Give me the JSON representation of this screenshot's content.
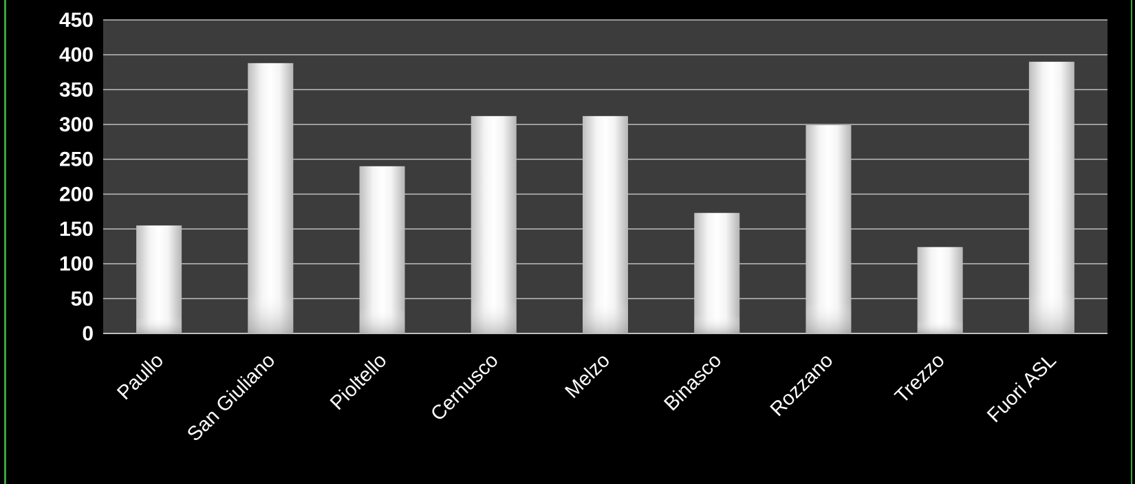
{
  "chart_data": {
    "type": "bar",
    "title": "",
    "xlabel": "",
    "ylabel": "",
    "categories": [
      "Paullo",
      "San Giuliano",
      "Pioltello",
      "Cernusco",
      "Melzo",
      "Binasco",
      "Rozzano",
      "Trezzo",
      "Fuori ASL"
    ],
    "values": [
      155,
      388,
      240,
      312,
      312,
      173,
      299,
      124,
      390
    ],
    "ylim": [
      0,
      450
    ],
    "yticks": [
      "0",
      "50",
      "100",
      "150",
      "200",
      "250",
      "300",
      "350",
      "400",
      "450"
    ],
    "grid": true,
    "legend": "none"
  },
  "colors": {
    "background": "#000000",
    "plot_area": "#3c3c3c",
    "gridline": "#bfbfbf",
    "bar_center": "#ffffff",
    "bar_edge": "#b8b8b8",
    "text": "#ffffff",
    "frame_accent": "#3aa63a"
  }
}
